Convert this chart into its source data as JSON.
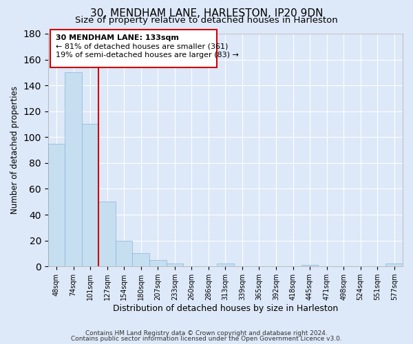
{
  "title": "30, MENDHAM LANE, HARLESTON, IP20 9DN",
  "subtitle": "Size of property relative to detached houses in Harleston",
  "xlabel": "Distribution of detached houses by size in Harleston",
  "ylabel": "Number of detached properties",
  "bar_labels": [
    "48sqm",
    "74sqm",
    "101sqm",
    "127sqm",
    "154sqm",
    "180sqm",
    "207sqm",
    "233sqm",
    "260sqm",
    "286sqm",
    "313sqm",
    "339sqm",
    "365sqm",
    "392sqm",
    "418sqm",
    "445sqm",
    "471sqm",
    "498sqm",
    "524sqm",
    "551sqm",
    "577sqm"
  ],
  "bar_values": [
    95,
    150,
    110,
    50,
    20,
    10,
    5,
    2,
    0,
    0,
    2,
    0,
    0,
    0,
    0,
    1,
    0,
    0,
    0,
    0,
    2
  ],
  "bar_color": "#c5dff0",
  "bar_edge_color": "#8ab4d4",
  "vline_x": 3,
  "vline_color": "#cc0000",
  "annotation_title": "30 MENDHAM LANE: 133sqm",
  "annotation_line1": "← 81% of detached houses are smaller (361)",
  "annotation_line2": "19% of semi-detached houses are larger (83) →",
  "annotation_box_color": "#ffffff",
  "annotation_box_edge": "#cc0000",
  "ylim": [
    0,
    180
  ],
  "yticks": [
    0,
    20,
    40,
    60,
    80,
    100,
    120,
    140,
    160,
    180
  ],
  "footnote1": "Contains HM Land Registry data © Crown copyright and database right 2024.",
  "footnote2": "Contains public sector information licensed under the Open Government Licence v3.0.",
  "background_color": "#dde8f8",
  "plot_bg_color": "#dde8f8",
  "grid_color": "#ffffff",
  "title_fontsize": 11,
  "subtitle_fontsize": 9.5
}
